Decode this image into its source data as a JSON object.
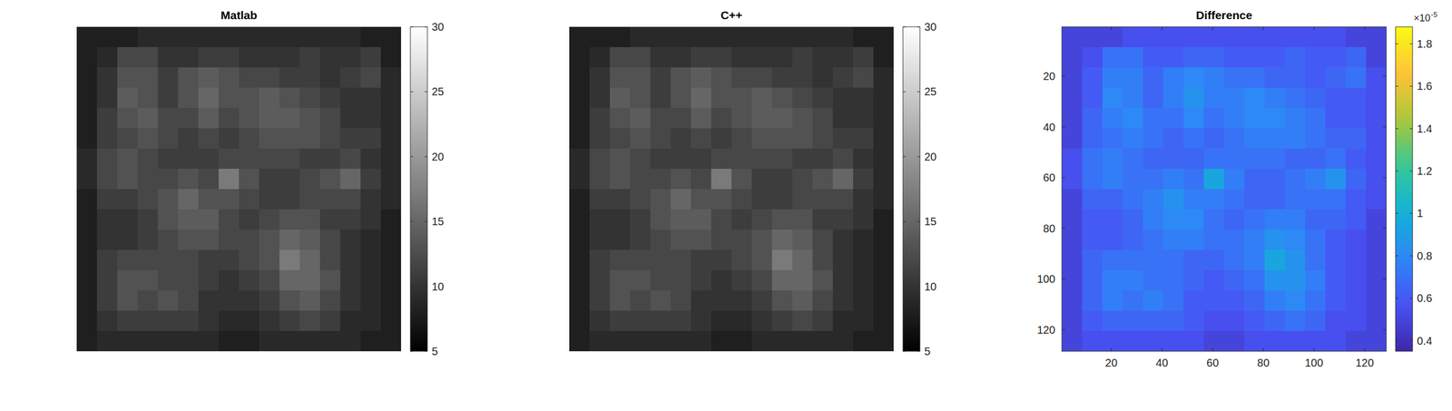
{
  "chart_data": [
    {
      "type": "heatmap",
      "title": "Matlab",
      "color": "gray",
      "tick_labels": false,
      "xlim": [
        0.5,
        128.5
      ],
      "ylim": [
        0.5,
        128.5
      ],
      "colorbar_lim": [
        5,
        30
      ],
      "colorbar_ticks": [
        5,
        10,
        15,
        20,
        25,
        30
      ],
      "cells": [
        [
          8,
          8,
          8,
          9,
          9,
          9,
          9,
          9,
          9,
          9,
          9,
          9,
          9,
          9,
          8,
          8
        ],
        [
          8,
          9,
          12,
          12,
          10,
          10,
          11,
          11,
          10,
          10,
          10,
          11,
          10,
          10,
          11,
          8
        ],
        [
          8,
          10,
          13,
          13,
          11,
          13,
          14,
          13,
          12,
          12,
          11,
          11,
          10,
          11,
          12,
          9
        ],
        [
          8,
          10,
          14,
          13,
          11,
          13,
          15,
          13,
          13,
          14,
          13,
          12,
          11,
          10,
          10,
          9
        ],
        [
          8,
          11,
          13,
          14,
          12,
          12,
          14,
          12,
          13,
          14,
          14,
          13,
          12,
          10,
          10,
          9
        ],
        [
          8,
          11,
          12,
          13,
          12,
          11,
          12,
          11,
          12,
          13,
          13,
          13,
          12,
          11,
          11,
          9
        ],
        [
          9,
          12,
          13,
          12,
          11,
          11,
          11,
          12,
          12,
          12,
          12,
          11,
          11,
          12,
          10,
          9
        ],
        [
          9,
          12,
          13,
          12,
          12,
          13,
          12,
          17,
          13,
          11,
          11,
          12,
          13,
          15,
          11,
          9
        ],
        [
          8,
          11,
          11,
          12,
          13,
          15,
          13,
          13,
          12,
          11,
          11,
          12,
          12,
          12,
          10,
          9
        ],
        [
          8,
          10,
          10,
          11,
          13,
          14,
          14,
          12,
          11,
          12,
          13,
          13,
          11,
          11,
          10,
          8
        ],
        [
          8,
          10,
          10,
          11,
          12,
          13,
          13,
          12,
          12,
          13,
          15,
          14,
          12,
          10,
          9,
          8
        ],
        [
          8,
          11,
          12,
          12,
          12,
          12,
          11,
          11,
          12,
          13,
          17,
          15,
          12,
          10,
          9,
          8
        ],
        [
          8,
          11,
          13,
          13,
          12,
          12,
          11,
          10,
          11,
          12,
          15,
          15,
          13,
          10,
          9,
          8
        ],
        [
          8,
          11,
          13,
          12,
          13,
          12,
          10,
          10,
          10,
          11,
          13,
          14,
          12,
          10,
          9,
          8
        ],
        [
          8,
          10,
          11,
          11,
          11,
          11,
          10,
          9,
          9,
          10,
          11,
          12,
          11,
          9,
          9,
          8
        ],
        [
          8,
          9,
          9,
          9,
          9,
          9,
          9,
          8,
          8,
          9,
          9,
          9,
          9,
          9,
          8,
          8
        ]
      ]
    },
    {
      "type": "heatmap",
      "title": "C++",
      "color": "gray",
      "tick_labels": false,
      "xlim": [
        0.5,
        128.5
      ],
      "ylim": [
        0.5,
        128.5
      ],
      "colorbar_lim": [
        5,
        30
      ],
      "colorbar_ticks": [
        5,
        10,
        15,
        20,
        25,
        30
      ],
      "cells": [
        [
          8,
          8,
          8,
          9,
          9,
          9,
          9,
          9,
          9,
          9,
          9,
          9,
          9,
          9,
          8,
          8
        ],
        [
          8,
          9,
          12,
          12,
          10,
          10,
          11,
          11,
          10,
          10,
          10,
          11,
          10,
          10,
          11,
          8
        ],
        [
          8,
          10,
          13,
          13,
          11,
          13,
          14,
          13,
          12,
          12,
          11,
          11,
          10,
          11,
          12,
          9
        ],
        [
          8,
          10,
          14,
          13,
          11,
          13,
          15,
          13,
          13,
          14,
          13,
          12,
          11,
          10,
          10,
          9
        ],
        [
          8,
          11,
          13,
          14,
          12,
          12,
          14,
          12,
          13,
          14,
          14,
          13,
          12,
          10,
          10,
          9
        ],
        [
          8,
          11,
          12,
          13,
          12,
          11,
          12,
          11,
          12,
          13,
          13,
          13,
          12,
          11,
          11,
          9
        ],
        [
          9,
          12,
          13,
          12,
          11,
          11,
          11,
          12,
          12,
          12,
          12,
          11,
          11,
          12,
          10,
          9
        ],
        [
          9,
          12,
          13,
          12,
          12,
          13,
          12,
          17,
          13,
          11,
          11,
          12,
          13,
          15,
          11,
          9
        ],
        [
          8,
          11,
          11,
          12,
          13,
          15,
          13,
          13,
          12,
          11,
          11,
          12,
          12,
          12,
          10,
          9
        ],
        [
          8,
          10,
          10,
          11,
          13,
          14,
          14,
          12,
          11,
          12,
          13,
          13,
          11,
          11,
          10,
          8
        ],
        [
          8,
          10,
          10,
          11,
          12,
          13,
          13,
          12,
          12,
          13,
          15,
          14,
          12,
          10,
          9,
          8
        ],
        [
          8,
          11,
          12,
          12,
          12,
          12,
          11,
          11,
          12,
          13,
          17,
          15,
          12,
          10,
          9,
          8
        ],
        [
          8,
          11,
          13,
          13,
          12,
          12,
          11,
          10,
          11,
          12,
          15,
          15,
          13,
          10,
          9,
          8
        ],
        [
          8,
          11,
          13,
          12,
          13,
          12,
          10,
          10,
          10,
          11,
          13,
          14,
          12,
          10,
          9,
          8
        ],
        [
          8,
          10,
          11,
          11,
          11,
          11,
          10,
          9,
          9,
          10,
          11,
          12,
          11,
          9,
          9,
          8
        ],
        [
          8,
          9,
          9,
          9,
          9,
          9,
          9,
          8,
          8,
          9,
          9,
          9,
          9,
          9,
          8,
          8
        ]
      ]
    },
    {
      "type": "heatmap",
      "title": "Difference",
      "color": "parula",
      "xlim": [
        0.5,
        128.5
      ],
      "ylim": [
        0.5,
        128.5
      ],
      "xticks": [
        20,
        40,
        60,
        80,
        100,
        120
      ],
      "yticks": [
        20,
        40,
        60,
        80,
        100,
        120
      ],
      "colorbar_lim": [
        0.35,
        1.88
      ],
      "colorbar_ticks": [
        0.4,
        0.6,
        0.8,
        1,
        1.2,
        1.4,
        1.6,
        1.8
      ],
      "colorbar_multiplier": "×10",
      "colorbar_exponent": "-5",
      "cells": [
        [
          0.5,
          0.5,
          0.5,
          0.55,
          0.55,
          0.55,
          0.55,
          0.55,
          0.55,
          0.55,
          0.55,
          0.55,
          0.55,
          0.55,
          0.5,
          0.5
        ],
        [
          0.5,
          0.55,
          0.7,
          0.7,
          0.6,
          0.6,
          0.65,
          0.65,
          0.6,
          0.6,
          0.6,
          0.65,
          0.6,
          0.6,
          0.65,
          0.5
        ],
        [
          0.5,
          0.6,
          0.75,
          0.75,
          0.65,
          0.75,
          0.8,
          0.75,
          0.7,
          0.7,
          0.65,
          0.65,
          0.6,
          0.65,
          0.7,
          0.55
        ],
        [
          0.5,
          0.6,
          0.8,
          0.75,
          0.65,
          0.75,
          0.85,
          0.75,
          0.75,
          0.8,
          0.75,
          0.7,
          0.65,
          0.6,
          0.6,
          0.55
        ],
        [
          0.5,
          0.65,
          0.75,
          0.8,
          0.7,
          0.7,
          0.8,
          0.7,
          0.75,
          0.8,
          0.8,
          0.75,
          0.7,
          0.6,
          0.6,
          0.55
        ],
        [
          0.5,
          0.65,
          0.7,
          0.75,
          0.7,
          0.65,
          0.7,
          0.65,
          0.7,
          0.75,
          0.75,
          0.75,
          0.7,
          0.65,
          0.65,
          0.55
        ],
        [
          0.55,
          0.7,
          0.75,
          0.7,
          0.65,
          0.65,
          0.65,
          0.7,
          0.7,
          0.7,
          0.7,
          0.65,
          0.65,
          0.7,
          0.6,
          0.55
        ],
        [
          0.55,
          0.7,
          0.75,
          0.7,
          0.7,
          0.75,
          0.7,
          0.95,
          0.75,
          0.65,
          0.65,
          0.7,
          0.75,
          0.85,
          0.65,
          0.55
        ],
        [
          0.5,
          0.65,
          0.65,
          0.7,
          0.75,
          0.85,
          0.75,
          0.75,
          0.7,
          0.65,
          0.65,
          0.7,
          0.7,
          0.7,
          0.6,
          0.55
        ],
        [
          0.5,
          0.6,
          0.6,
          0.65,
          0.75,
          0.8,
          0.8,
          0.7,
          0.65,
          0.7,
          0.75,
          0.75,
          0.65,
          0.65,
          0.6,
          0.5
        ],
        [
          0.5,
          0.6,
          0.6,
          0.65,
          0.7,
          0.75,
          0.75,
          0.7,
          0.7,
          0.75,
          0.85,
          0.8,
          0.7,
          0.6,
          0.55,
          0.5
        ],
        [
          0.5,
          0.65,
          0.7,
          0.7,
          0.7,
          0.7,
          0.65,
          0.65,
          0.7,
          0.75,
          0.95,
          0.85,
          0.7,
          0.6,
          0.55,
          0.5
        ],
        [
          0.5,
          0.65,
          0.75,
          0.75,
          0.7,
          0.7,
          0.65,
          0.6,
          0.65,
          0.7,
          0.85,
          0.85,
          0.75,
          0.6,
          0.55,
          0.5
        ],
        [
          0.5,
          0.65,
          0.75,
          0.7,
          0.75,
          0.7,
          0.6,
          0.6,
          0.6,
          0.65,
          0.75,
          0.8,
          0.7,
          0.6,
          0.55,
          0.5
        ],
        [
          0.5,
          0.6,
          0.65,
          0.65,
          0.65,
          0.65,
          0.6,
          0.55,
          0.55,
          0.6,
          0.65,
          0.7,
          0.65,
          0.55,
          0.55,
          0.5
        ],
        [
          0.5,
          0.55,
          0.55,
          0.55,
          0.55,
          0.55,
          0.55,
          0.5,
          0.5,
          0.55,
          0.55,
          0.55,
          0.55,
          0.55,
          0.5,
          0.5
        ]
      ]
    }
  ]
}
